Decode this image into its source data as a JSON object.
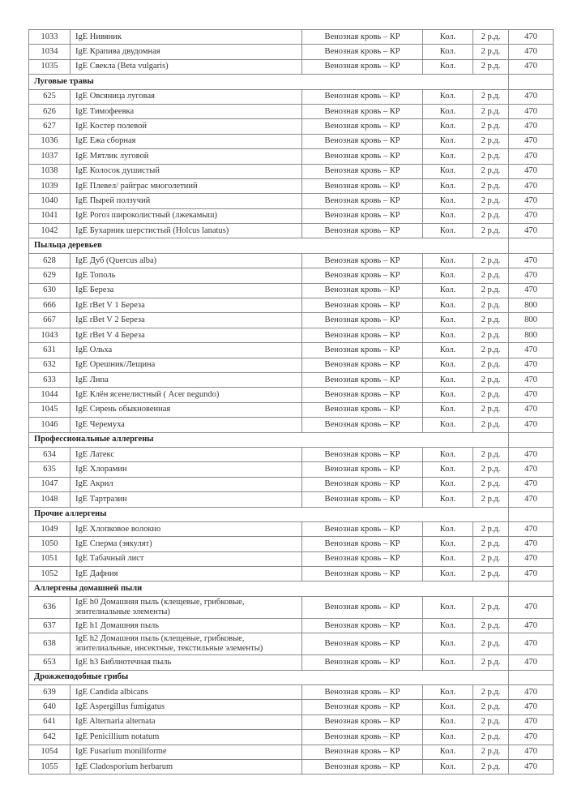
{
  "table": {
    "rows": [
      {
        "code": "1033",
        "name": "IgE Нивяник",
        "material": "Венозная кровь – КР",
        "type": "Кол.",
        "term": "2 р.д.",
        "price": "470"
      },
      {
        "code": "1034",
        "name": "IgE Крапива двудомная",
        "material": "Венозная кровь – КР",
        "type": "Кол.",
        "term": "2 р.д.",
        "price": "470"
      },
      {
        "code": "1035",
        "name": "IgE Свекла (Beta vulgaris)",
        "material": "Венозная кровь – КР",
        "type": "Кол.",
        "term": "2 р.д.",
        "price": "470"
      },
      {
        "section": "Луговые травы"
      },
      {
        "code": "625",
        "name": "IgE Овсяница луговая",
        "material": "Венозная кровь – КР",
        "type": "Кол.",
        "term": "2 р.д.",
        "price": "470"
      },
      {
        "code": "626",
        "name": "IgE Тимофеевка",
        "material": "Венозная кровь – КР",
        "type": "Кол.",
        "term": "2 р.д.",
        "price": "470"
      },
      {
        "code": "627",
        "name": "IgE Костер полевой",
        "material": "Венозная кровь – КР",
        "type": "Кол.",
        "term": "2 р.д.",
        "price": "470"
      },
      {
        "code": "1036",
        "name": "IgE Ежа сборная",
        "material": "Венозная кровь – КР",
        "type": "Кол.",
        "term": "2 р.д.",
        "price": "470"
      },
      {
        "code": "1037",
        "name": "IgE Мятлик луговой",
        "material": "Венозная кровь – КР",
        "type": "Кол.",
        "term": "2 р.д.",
        "price": "470"
      },
      {
        "code": "1038",
        "name": "IgE Колосок душистый",
        "material": "Венозная кровь – КР",
        "type": "Кол.",
        "term": "2 р.д.",
        "price": "470"
      },
      {
        "code": "1039",
        "name": "IgE Плевел/ райграс многолетний",
        "material": "Венозная кровь – КР",
        "type": "Кол.",
        "term": "2 р.д.",
        "price": "470"
      },
      {
        "code": "1040",
        "name": "IgE Пырей ползучий",
        "material": "Венозная кровь – КР",
        "type": "Кол.",
        "term": "2 р.д.",
        "price": "470"
      },
      {
        "code": "1041",
        "name": "IgE Рогоз широколистный (лжекамыш)",
        "material": "Венозная кровь – КР",
        "type": "Кол.",
        "term": "2 р.д.",
        "price": "470"
      },
      {
        "code": "1042",
        "name": "IgE Бухарник шерстистый  (Holcus lanatus)",
        "material": "Венозная кровь – КР",
        "type": "Кол.",
        "term": "2 р.д.",
        "price": "470"
      },
      {
        "section": "Пыльца деревьев"
      },
      {
        "code": "628",
        "name": "IgE Дуб (Quercus alba)",
        "material": "Венозная кровь – КР",
        "type": "Кол.",
        "term": "2 р.д.",
        "price": "470"
      },
      {
        "code": "629",
        "name": "IgE Тополь",
        "material": "Венозная кровь – КР",
        "type": "Кол.",
        "term": "2 р.д.",
        "price": "470"
      },
      {
        "code": "630",
        "name": "IgE Береза",
        "material": "Венозная кровь – КР",
        "type": "Кол.",
        "term": "2 р.д.",
        "price": "470"
      },
      {
        "code": "666",
        "name": "IgE rBet V 1 Береза",
        "material": "Венозная кровь – КР",
        "type": "Кол.",
        "term": "2 р.д.",
        "price": "800"
      },
      {
        "code": "667",
        "name": "IgE rBet V 2 Береза",
        "material": "Венозная кровь – КР",
        "type": "Кол.",
        "term": "2 р.д.",
        "price": "800"
      },
      {
        "code": "1043",
        "name": "IgE rBet V 4 Береза",
        "material": "Венозная кровь – КР",
        "type": "Кол.",
        "term": "2 р.д.",
        "price": "800"
      },
      {
        "code": "631",
        "name": "IgE Ольха",
        "material": "Венозная кровь – КР",
        "type": "Кол.",
        "term": "2 р.д.",
        "price": "470"
      },
      {
        "code": "632",
        "name": "IgE Орешник/Лещина",
        "material": "Венозная кровь – КР",
        "type": "Кол.",
        "term": "2 р.д.",
        "price": "470"
      },
      {
        "code": "633",
        "name": "IgE Липа",
        "material": "Венозная кровь – КР",
        "type": "Кол.",
        "term": "2 р.д.",
        "price": "470"
      },
      {
        "code": "1044",
        "name": "IgE Клён ясенелистный ( Acer negundo)",
        "material": "Венозная кровь – КР",
        "type": "Кол.",
        "term": "2 р.д.",
        "price": "470"
      },
      {
        "code": "1045",
        "name": "IgE Сирень обыкновенная",
        "material": "Венозная кровь – КР",
        "type": "Кол.",
        "term": "2 р.д.",
        "price": "470"
      },
      {
        "code": "1046",
        "name": "IgE Черемуха",
        "material": "Венозная кровь – КР",
        "type": "Кол.",
        "term": "2 р.д.",
        "price": "470"
      },
      {
        "section": "Профессиональные аллергены"
      },
      {
        "code": "634",
        "name": "IgE Латекс",
        "material": "Венозная кровь – КР",
        "type": "Кол.",
        "term": "2 р.д.",
        "price": "470"
      },
      {
        "code": "635",
        "name": "IgE Хлорамин",
        "material": "Венозная кровь – КР",
        "type": "Кол.",
        "term": "2 р.д.",
        "price": "470"
      },
      {
        "code": "1047",
        "name": "IgE Акрил",
        "material": "Венозная кровь – КР",
        "type": "Кол.",
        "term": "2 р.д.",
        "price": "470"
      },
      {
        "code": "1048",
        "name": "IgE Тартразин",
        "material": "Венозная кровь – КР",
        "type": "Кол.",
        "term": "2 р.д.",
        "price": "470"
      },
      {
        "section": "Прочие аллергены"
      },
      {
        "code": "1049",
        "name": "IgE Хлопковое волокно",
        "material": "Венозная кровь – КР",
        "type": "Кол.",
        "term": "2 р.д.",
        "price": "470"
      },
      {
        "code": "1050",
        "name": "IgE Сперма (эякулят)",
        "material": "Венозная кровь – КР",
        "type": "Кол.",
        "term": "2 р.д.",
        "price": "470"
      },
      {
        "code": "1051",
        "name": "IgE Табачный лист",
        "material": "Венозная кровь – КР",
        "type": "Кол.",
        "term": "2 р.д.",
        "price": "470"
      },
      {
        "code": "1052",
        "name": "IgE Дафния",
        "material": "Венозная кровь – КР",
        "type": "Кол.",
        "term": "2 р.д.",
        "price": "470"
      },
      {
        "section": "Аллергены домашней пыли"
      },
      {
        "code": "636",
        "name": "IgE h0 Домашняя пыль (клещевые, грибковые, эпителиальные элементы)",
        "material": "Венозная кровь – КР",
        "type": "Кол.",
        "term": "2 р.д.",
        "price": "470",
        "double": true
      },
      {
        "code": "637",
        "name": "IgE h1 Домашняя пыль",
        "material": "Венозная кровь – КР",
        "type": "Кол.",
        "term": "2 р.д.",
        "price": "470"
      },
      {
        "code": "638",
        "name": "IgE h2 Домашняя пыль (клещевые, грибковые, эпителиальные, инсектные, текстильные элементы)",
        "material": "Венозная кровь – КР",
        "type": "Кол.",
        "term": "2 р.д.",
        "price": "470",
        "double": true
      },
      {
        "code": "653",
        "name": "IgE h3 Библиотечная пыль",
        "material": "Венозная кровь – КР",
        "type": "Кол.",
        "term": "2 р.д.",
        "price": "470"
      },
      {
        "section": "Дрожжеподобные грибы"
      },
      {
        "code": "639",
        "name": "IgE Candida albicans",
        "material": "Венозная кровь – КР",
        "type": "Кол.",
        "term": "2 р.д.",
        "price": "470"
      },
      {
        "code": "640",
        "name": "IgE Aspergillus fumigatus",
        "material": "Венозная кровь – КР",
        "type": "Кол.",
        "term": "2 р.д.",
        "price": "470"
      },
      {
        "code": "641",
        "name": "IgE Alternaria alternata",
        "material": "Венозная кровь – КР",
        "type": "Кол.",
        "term": "2 р.д.",
        "price": "470"
      },
      {
        "code": "642",
        "name": "IgE Penicillium notatum",
        "material": "Венозная кровь – КР",
        "type": "Кол.",
        "term": "2 р.д.",
        "price": "470"
      },
      {
        "code": "1054",
        "name": "IgE Fusarium moniliforme",
        "material": "Венозная кровь – КР",
        "type": "Кол.",
        "term": "2 р.д.",
        "price": "470"
      },
      {
        "code": "1055",
        "name": "IgE Cladosporium herbarum",
        "material": "Венозная кровь – КР",
        "type": "Кол.",
        "term": "2 р.д.",
        "price": "470"
      }
    ]
  }
}
